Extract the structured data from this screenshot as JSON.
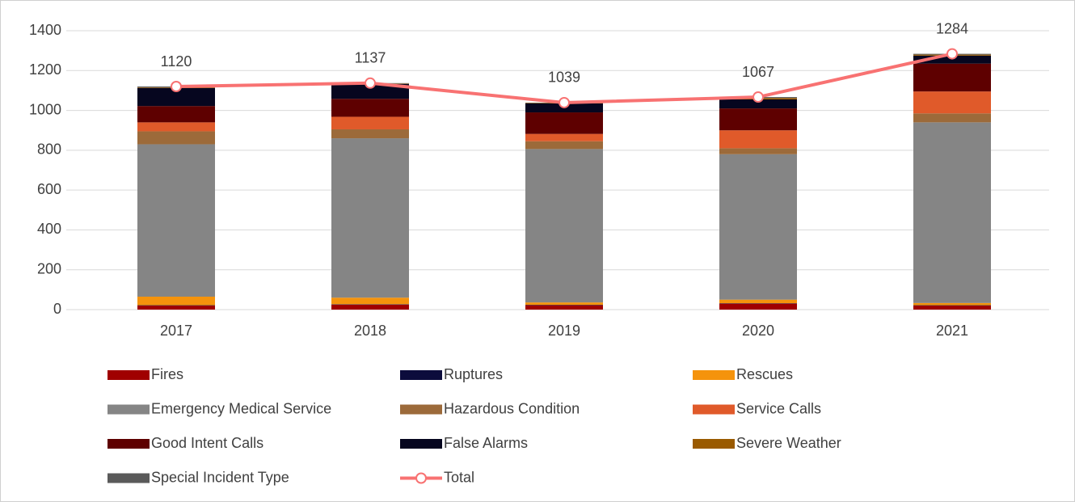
{
  "chart_data": {
    "type": "bar",
    "stacked": true,
    "categories": [
      "2017",
      "2018",
      "2019",
      "2020",
      "2021"
    ],
    "ylim": [
      0,
      1400
    ],
    "yticks": [
      0,
      200,
      400,
      600,
      800,
      1000,
      1200,
      1400
    ],
    "grid": true,
    "legend": "bottom",
    "series": [
      {
        "name": "Fires",
        "color": "#a00000",
        "values": [
          20,
          25,
          22,
          30,
          20
        ]
      },
      {
        "name": "Ruptures",
        "color": "#0c0c3c",
        "values": [
          2,
          2,
          2,
          2,
          2
        ]
      },
      {
        "name": "Rescues",
        "color": "#f5930c",
        "values": [
          43,
          33,
          12,
          18,
          11
        ]
      },
      {
        "name": "Emergency Medical Service",
        "color": "#858585",
        "values": [
          765,
          800,
          770,
          730,
          907
        ]
      },
      {
        "name": "Hazardous Condition",
        "color": "#9c6a3a",
        "values": [
          65,
          45,
          39,
          30,
          45
        ]
      },
      {
        "name": "Service Calls",
        "color": "#e05a2a",
        "values": [
          45,
          63,
          37,
          90,
          110
        ]
      },
      {
        "name": "Good Intent Calls",
        "color": "#5e0000",
        "values": [
          82,
          90,
          108,
          110,
          140
        ]
      },
      {
        "name": "False Alarms",
        "color": "#06061f",
        "values": [
          90,
          75,
          45,
          45,
          40
        ]
      },
      {
        "name": "Severe Weather",
        "color": "#9a5a00",
        "values": [
          3,
          2,
          2,
          7,
          5
        ]
      },
      {
        "name": "Special Incident Type",
        "color": "#5a5a5a",
        "values": [
          5,
          2,
          2,
          5,
          4
        ]
      },
      {
        "name": "Total",
        "type": "line",
        "color": "#f87272",
        "values": [
          1120,
          1137,
          1039,
          1067,
          1284
        ]
      }
    ]
  }
}
